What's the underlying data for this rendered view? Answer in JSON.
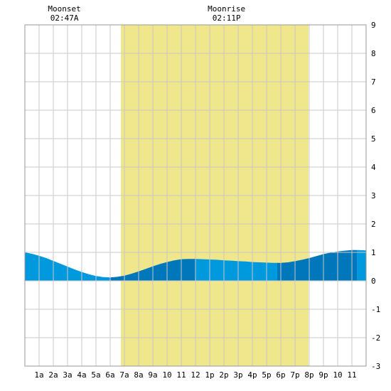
{
  "annotations": {
    "moonset": {
      "label": "Moonset",
      "time": "02:47A",
      "hour": 2.78
    },
    "moonrise": {
      "label": "Moonrise",
      "time": "02:11P",
      "hour": 14.18
    }
  },
  "chart_data": {
    "type": "area",
    "title": "",
    "xlabel": "",
    "ylabel": "",
    "xlim": [
      0,
      24
    ],
    "ylim": [
      -3,
      9
    ],
    "grid": true,
    "x_ticks": [
      {
        "x": 1,
        "label": "1a"
      },
      {
        "x": 2,
        "label": "2a"
      },
      {
        "x": 3,
        "label": "3a"
      },
      {
        "x": 4,
        "label": "4a"
      },
      {
        "x": 5,
        "label": "5a"
      },
      {
        "x": 6,
        "label": "6a"
      },
      {
        "x": 7,
        "label": "7a"
      },
      {
        "x": 8,
        "label": "8a"
      },
      {
        "x": 9,
        "label": "9a"
      },
      {
        "x": 10,
        "label": "10"
      },
      {
        "x": 11,
        "label": "11"
      },
      {
        "x": 12,
        "label": "12"
      },
      {
        "x": 13,
        "label": "1p"
      },
      {
        "x": 14,
        "label": "2p"
      },
      {
        "x": 15,
        "label": "3p"
      },
      {
        "x": 16,
        "label": "4p"
      },
      {
        "x": 17,
        "label": "5p"
      },
      {
        "x": 18,
        "label": "6p"
      },
      {
        "x": 19,
        "label": "7p"
      },
      {
        "x": 20,
        "label": "8p"
      },
      {
        "x": 21,
        "label": "9p"
      },
      {
        "x": 22,
        "label": "10"
      },
      {
        "x": 23,
        "label": "11"
      }
    ],
    "y_ticks": [
      -3,
      -2,
      -1,
      0,
      1,
      2,
      3,
      4,
      5,
      6,
      7,
      8,
      9
    ],
    "daylight": {
      "start": 6.75,
      "end": 19.95,
      "color": "#f0e68c"
    },
    "bands": [
      {
        "x": [
          0,
          6.0
        ],
        "color": "#0099dd"
      },
      {
        "x": [
          6.0,
          12.0
        ],
        "color": "#0077bb"
      },
      {
        "x": [
          12.0,
          17.75
        ],
        "color": "#0099dd"
      },
      {
        "x": [
          17.75,
          23.35
        ],
        "color": "#0077bb"
      },
      {
        "x": [
          23.35,
          24
        ],
        "color": "#0099dd"
      }
    ],
    "series": [
      {
        "x": [
          0,
          0.5,
          1,
          1.5,
          2,
          2.5,
          3,
          3.5,
          4,
          4.5,
          5,
          5.5,
          6,
          6.5,
          7,
          7.5,
          8,
          8.5,
          9,
          9.5,
          10,
          10.5,
          11,
          11.5,
          12,
          12.5,
          13,
          13.5,
          14,
          14.5,
          15,
          15.5,
          16,
          16.5,
          17,
          17.5,
          18,
          18.5,
          19,
          19.5,
          20,
          20.5,
          21,
          21.5,
          22,
          22.5,
          23,
          23.5,
          24
        ],
        "y": [
          1.0,
          0.95,
          0.88,
          0.8,
          0.7,
          0.6,
          0.5,
          0.4,
          0.31,
          0.23,
          0.17,
          0.13,
          0.12,
          0.14,
          0.18,
          0.25,
          0.33,
          0.42,
          0.51,
          0.59,
          0.66,
          0.72,
          0.76,
          0.77,
          0.77,
          0.76,
          0.75,
          0.74,
          0.72,
          0.71,
          0.69,
          0.68,
          0.66,
          0.65,
          0.64,
          0.63,
          0.63,
          0.65,
          0.69,
          0.74,
          0.8,
          0.87,
          0.94,
          0.99,
          1.03,
          1.06,
          1.08,
          1.08,
          1.07
        ]
      }
    ]
  }
}
